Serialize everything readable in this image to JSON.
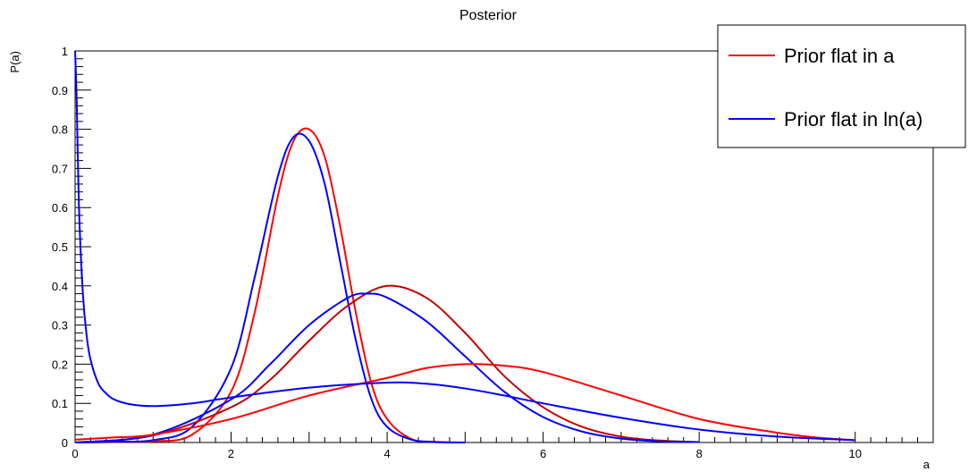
{
  "chart_data": {
    "type": "line",
    "title": "Posterior",
    "xlabel": "a",
    "ylabel": "P(a)",
    "xlim": [
      0,
      11
    ],
    "ylim": [
      0,
      1
    ],
    "x_ticks": [
      0,
      2,
      4,
      6,
      8,
      10
    ],
    "y_ticks": [
      0,
      0.1,
      0.2,
      0.3,
      0.4,
      0.5,
      0.6,
      0.7,
      0.8,
      0.9,
      1
    ],
    "y_tick_labels": [
      "0",
      "0.1",
      "0.2",
      "0.3",
      "0.4",
      "0.5",
      "0.6",
      "0.7",
      "0.8",
      "0.9",
      "1"
    ],
    "grid": false,
    "legend_position": "top-right",
    "legend": [
      {
        "label": "Prior flat in a",
        "color": "#ff0000"
      },
      {
        "label": "Prior flat in ln(a)",
        "color": "#0000ff"
      }
    ],
    "series": [
      {
        "color": "#ff0000",
        "x": [
          0,
          0.5,
          1,
          1.5,
          2,
          2.3,
          2.6,
          2.8,
          3,
          3.2,
          3.4,
          3.6,
          3.8,
          4,
          4.3,
          4.6,
          5
        ],
        "y": [
          0,
          0.001,
          0.003,
          0.02,
          0.13,
          0.33,
          0.63,
          0.77,
          0.8,
          0.73,
          0.55,
          0.33,
          0.15,
          0.06,
          0.01,
          0.002,
          0
        ]
      },
      {
        "color": "#0000ff",
        "x": [
          0,
          0.5,
          1,
          1.5,
          2,
          2.3,
          2.6,
          2.8,
          3,
          3.2,
          3.4,
          3.6,
          3.8,
          4,
          4.3,
          4.6,
          5
        ],
        "y": [
          0,
          0.002,
          0.006,
          0.04,
          0.19,
          0.42,
          0.68,
          0.78,
          0.77,
          0.66,
          0.46,
          0.26,
          0.11,
          0.04,
          0.008,
          0.001,
          0
        ]
      },
      {
        "color": "#c00000",
        "x": [
          0,
          1,
          2,
          2.5,
          3,
          3.5,
          4,
          4.5,
          5,
          5.5,
          6,
          6.5,
          7,
          7.5,
          8
        ],
        "y": [
          0,
          0.018,
          0.09,
          0.16,
          0.26,
          0.35,
          0.4,
          0.37,
          0.28,
          0.17,
          0.09,
          0.04,
          0.015,
          0.005,
          0.001
        ]
      },
      {
        "color": "#0000ff",
        "x": [
          0,
          1,
          2,
          2.5,
          3,
          3.5,
          3.75,
          4,
          4.5,
          5,
          5.5,
          6,
          6.5,
          7,
          7.5,
          8
        ],
        "y": [
          0,
          0.02,
          0.11,
          0.2,
          0.3,
          0.37,
          0.38,
          0.37,
          0.31,
          0.22,
          0.13,
          0.065,
          0.028,
          0.01,
          0.003,
          0.001
        ]
      },
      {
        "color": "#ff0000",
        "x": [
          0,
          0.5,
          1,
          2,
          3,
          4,
          4.5,
          5,
          5.5,
          6,
          7,
          8,
          9,
          9.5,
          10
        ],
        "y": [
          0.007,
          0.013,
          0.02,
          0.06,
          0.12,
          0.165,
          0.19,
          0.2,
          0.196,
          0.18,
          0.12,
          0.06,
          0.025,
          0.013,
          0.006
        ]
      },
      {
        "color": "#0000ff",
        "x": [
          0,
          0.02,
          0.05,
          0.1,
          0.15,
          0.2,
          0.3,
          0.4,
          0.5,
          0.7,
          1,
          1.5,
          2,
          3,
          4,
          4.5,
          5,
          5.5,
          6,
          7,
          8,
          9,
          10
        ],
        "y": [
          1,
          0.88,
          0.6,
          0.38,
          0.27,
          0.21,
          0.15,
          0.125,
          0.11,
          0.098,
          0.093,
          0.1,
          0.115,
          0.14,
          0.153,
          0.15,
          0.138,
          0.12,
          0.1,
          0.063,
          0.033,
          0.015,
          0.006
        ]
      }
    ]
  }
}
